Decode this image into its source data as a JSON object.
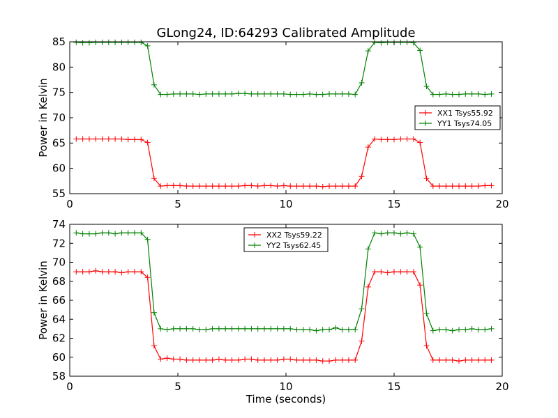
{
  "chart_data": [
    {
      "type": "line",
      "title": "GLong24, ID:64293 Calibrated Amplitude",
      "xlabel": "",
      "ylabel": "Power in Kelvin",
      "xlim": [
        0,
        20
      ],
      "ylim": [
        55,
        85
      ],
      "xticks": [
        "0",
        "5",
        "10",
        "15",
        "20"
      ],
      "yticks": [
        "55",
        "60",
        "65",
        "70",
        "75",
        "80",
        "85"
      ],
      "legend_position": "center-right",
      "grid": false,
      "series": [
        {
          "name": "XX1 Tsys55.92",
          "color": "#ff0000",
          "x": [
            0.3,
            0.6,
            0.9,
            1.2,
            1.5,
            1.8,
            2.1,
            2.4,
            2.7,
            3.0,
            3.3,
            3.6,
            3.9,
            4.2,
            4.5,
            4.8,
            5.1,
            5.4,
            5.7,
            6.0,
            6.3,
            6.6,
            6.9,
            7.2,
            7.5,
            7.8,
            8.1,
            8.4,
            8.7,
            9.0,
            9.3,
            9.6,
            9.9,
            10.2,
            10.5,
            10.8,
            11.1,
            11.4,
            11.7,
            12.0,
            12.3,
            12.6,
            12.9,
            13.2,
            13.5,
            13.8,
            14.1,
            14.4,
            14.7,
            15.0,
            15.3,
            15.6,
            15.9,
            16.2,
            16.5,
            16.8,
            17.1,
            17.4,
            17.7,
            18.0,
            18.3,
            18.6,
            18.9,
            19.2,
            19.5
          ],
          "y": [
            65.8,
            65.8,
            65.8,
            65.8,
            65.8,
            65.8,
            65.8,
            65.8,
            65.7,
            65.7,
            65.7,
            65.1,
            58.0,
            56.5,
            56.6,
            56.6,
            56.6,
            56.5,
            56.5,
            56.5,
            56.5,
            56.5,
            56.5,
            56.5,
            56.5,
            56.5,
            56.6,
            56.6,
            56.5,
            56.6,
            56.6,
            56.5,
            56.6,
            56.5,
            56.5,
            56.5,
            56.5,
            56.5,
            56.4,
            56.5,
            56.5,
            56.5,
            56.5,
            56.5,
            58.4,
            64.2,
            65.8,
            65.7,
            65.7,
            65.7,
            65.8,
            65.8,
            65.8,
            65.1,
            58.0,
            56.5,
            56.5,
            56.5,
            56.5,
            56.5,
            56.5,
            56.5,
            56.5,
            56.6,
            56.6
          ]
        },
        {
          "name": "YY1 Tsys74.05",
          "color": "#008000",
          "x": [
            0.3,
            0.6,
            0.9,
            1.2,
            1.5,
            1.8,
            2.1,
            2.4,
            2.7,
            3.0,
            3.3,
            3.6,
            3.9,
            4.2,
            4.5,
            4.8,
            5.1,
            5.4,
            5.7,
            6.0,
            6.3,
            6.6,
            6.9,
            7.2,
            7.5,
            7.8,
            8.1,
            8.4,
            8.7,
            9.0,
            9.3,
            9.6,
            9.9,
            10.2,
            10.5,
            10.8,
            11.1,
            11.4,
            11.7,
            12.0,
            12.3,
            12.6,
            12.9,
            13.2,
            13.5,
            13.8,
            14.1,
            14.4,
            14.7,
            15.0,
            15.3,
            15.6,
            15.9,
            16.2,
            16.5,
            16.8,
            17.1,
            17.4,
            17.7,
            18.0,
            18.3,
            18.6,
            18.9,
            19.2,
            19.5
          ],
          "y": [
            84.9,
            84.8,
            84.8,
            84.9,
            84.9,
            84.9,
            84.9,
            84.9,
            84.9,
            84.9,
            84.9,
            84.2,
            76.5,
            74.6,
            74.6,
            74.7,
            74.7,
            74.7,
            74.7,
            74.6,
            74.7,
            74.7,
            74.7,
            74.7,
            74.7,
            74.8,
            74.8,
            74.7,
            74.7,
            74.7,
            74.7,
            74.7,
            74.7,
            74.6,
            74.6,
            74.6,
            74.7,
            74.6,
            74.6,
            74.7,
            74.7,
            74.7,
            74.7,
            74.6,
            76.9,
            83.2,
            84.9,
            84.8,
            84.9,
            84.9,
            84.9,
            84.9,
            84.8,
            83.3,
            76.2,
            74.6,
            74.6,
            74.7,
            74.6,
            74.6,
            74.7,
            74.7,
            74.7,
            74.6,
            74.7
          ]
        }
      ]
    },
    {
      "type": "line",
      "title": "",
      "xlabel": "Time (seconds)",
      "ylabel": "Power in Kelvin",
      "xlim": [
        0,
        20
      ],
      "ylim": [
        58,
        74
      ],
      "xticks": [
        "0",
        "5",
        "10",
        "15",
        "20"
      ],
      "yticks": [
        "58",
        "60",
        "62",
        "64",
        "66",
        "68",
        "70",
        "72",
        "74"
      ],
      "legend_position": "upper-center",
      "grid": false,
      "series": [
        {
          "name": "XX2 Tsys59.22",
          "color": "#ff0000",
          "x": [
            0.3,
            0.6,
            0.9,
            1.2,
            1.5,
            1.8,
            2.1,
            2.4,
            2.7,
            3.0,
            3.3,
            3.6,
            3.9,
            4.2,
            4.5,
            4.8,
            5.1,
            5.4,
            5.7,
            6.0,
            6.3,
            6.6,
            6.9,
            7.2,
            7.5,
            7.8,
            8.1,
            8.4,
            8.7,
            9.0,
            9.3,
            9.6,
            9.9,
            10.2,
            10.5,
            10.8,
            11.1,
            11.4,
            11.7,
            12.0,
            12.3,
            12.6,
            12.9,
            13.2,
            13.5,
            13.8,
            14.1,
            14.4,
            14.7,
            15.0,
            15.3,
            15.6,
            15.9,
            16.2,
            16.5,
            16.8,
            17.1,
            17.4,
            17.7,
            18.0,
            18.3,
            18.6,
            18.9,
            19.2,
            19.5
          ],
          "y": [
            69.0,
            69.0,
            69.0,
            69.1,
            69.0,
            69.0,
            69.0,
            68.9,
            69.0,
            69.0,
            69.0,
            68.4,
            61.2,
            59.8,
            59.9,
            59.8,
            59.8,
            59.7,
            59.7,
            59.7,
            59.7,
            59.7,
            59.8,
            59.7,
            59.7,
            59.7,
            59.8,
            59.8,
            59.7,
            59.7,
            59.7,
            59.7,
            59.8,
            59.8,
            59.7,
            59.7,
            59.7,
            59.7,
            59.6,
            59.6,
            59.7,
            59.7,
            59.7,
            59.7,
            61.7,
            67.4,
            69.0,
            69.0,
            68.9,
            69.0,
            69.0,
            69.0,
            69.0,
            67.6,
            61.2,
            59.7,
            59.7,
            59.7,
            59.7,
            59.6,
            59.7,
            59.7,
            59.7,
            59.7,
            59.7
          ]
        },
        {
          "name": "YY2 Tsys62.45",
          "color": "#008000",
          "x": [
            0.3,
            0.6,
            0.9,
            1.2,
            1.5,
            1.8,
            2.1,
            2.4,
            2.7,
            3.0,
            3.3,
            3.6,
            3.9,
            4.2,
            4.5,
            4.8,
            5.1,
            5.4,
            5.7,
            6.0,
            6.3,
            6.6,
            6.9,
            7.2,
            7.5,
            7.8,
            8.1,
            8.4,
            8.7,
            9.0,
            9.3,
            9.6,
            9.9,
            10.2,
            10.5,
            10.8,
            11.1,
            11.4,
            11.7,
            12.0,
            12.3,
            12.6,
            12.9,
            13.2,
            13.5,
            13.8,
            14.1,
            14.4,
            14.7,
            15.0,
            15.3,
            15.6,
            15.9,
            16.2,
            16.5,
            16.8,
            17.1,
            17.4,
            17.7,
            18.0,
            18.3,
            18.6,
            18.9,
            19.2,
            19.5
          ],
          "y": [
            73.1,
            73.0,
            73.0,
            73.0,
            73.1,
            73.1,
            73.0,
            73.1,
            73.1,
            73.1,
            73.1,
            72.4,
            64.7,
            63.0,
            62.9,
            63.0,
            63.0,
            63.0,
            63.0,
            62.9,
            62.9,
            63.0,
            63.0,
            63.0,
            63.0,
            63.0,
            63.0,
            63.0,
            63.0,
            63.0,
            63.0,
            63.0,
            63.0,
            63.0,
            62.9,
            62.9,
            62.9,
            62.8,
            62.9,
            62.9,
            63.1,
            62.9,
            62.9,
            62.9,
            65.1,
            71.4,
            73.1,
            73.0,
            73.1,
            73.1,
            73.0,
            73.1,
            73.0,
            71.6,
            64.6,
            62.8,
            62.9,
            62.9,
            62.8,
            62.9,
            62.9,
            63.0,
            62.9,
            62.9,
            63.0
          ]
        }
      ]
    }
  ]
}
